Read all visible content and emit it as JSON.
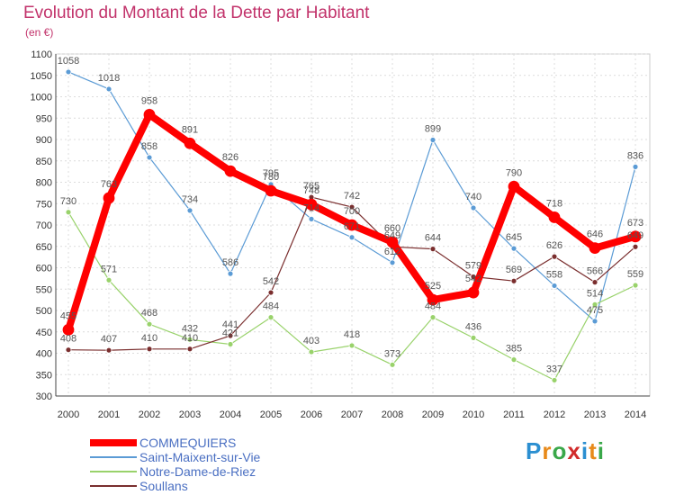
{
  "title": "Evolution du Montant de la Dette par Habitant",
  "subtitle": "(en €)",
  "logo": {
    "text": "Proxiti",
    "colors": [
      "#2b8fd1",
      "#e88a1a",
      "#3aa84a",
      "#d12b2b",
      "#2b8fd1",
      "#e88a1a",
      "#3aa84a"
    ]
  },
  "chart_data": {
    "type": "line",
    "x": [
      "2000",
      "2001",
      "2002",
      "2003",
      "2004",
      "2005",
      "2006",
      "2007",
      "2008",
      "2009",
      "2010",
      "2011",
      "2012",
      "2013",
      "2014"
    ],
    "ylim": [
      300,
      1100
    ],
    "yticks": [
      300,
      350,
      400,
      450,
      500,
      550,
      600,
      650,
      700,
      750,
      800,
      850,
      900,
      950,
      1000,
      1050,
      1100
    ],
    "grid": true,
    "legend_position": "bottom-left",
    "series": [
      {
        "name": "COMMEQUIERS",
        "color": "#ff0000",
        "width": 8,
        "values": [
          455,
          763,
          958,
          891,
          826,
          780,
          748,
          700,
          660,
          525,
          542,
          790,
          718,
          646,
          673
        ]
      },
      {
        "name": "Saint-Maixent-sur-Vie",
        "color": "#5b9bd5",
        "width": 1.2,
        "values": [
          1058,
          1018,
          858,
          734,
          586,
          795,
          714,
          671,
          612,
          899,
          740,
          645,
          558,
          475,
          836
        ]
      },
      {
        "name": "Notre-Dame-de-Riez",
        "color": "#99d26b",
        "width": 1.2,
        "values": [
          730,
          571,
          468,
          432,
          421,
          484,
          403,
          418,
          373,
          484,
          436,
          385,
          337,
          514,
          559
        ]
      },
      {
        "name": "Soullans",
        "color": "#7a2e2e",
        "width": 1.2,
        "values": [
          408,
          407,
          410,
          410,
          441,
          542,
          765,
          742,
          649,
          644,
          579,
          569,
          626,
          566,
          649
        ]
      }
    ]
  }
}
